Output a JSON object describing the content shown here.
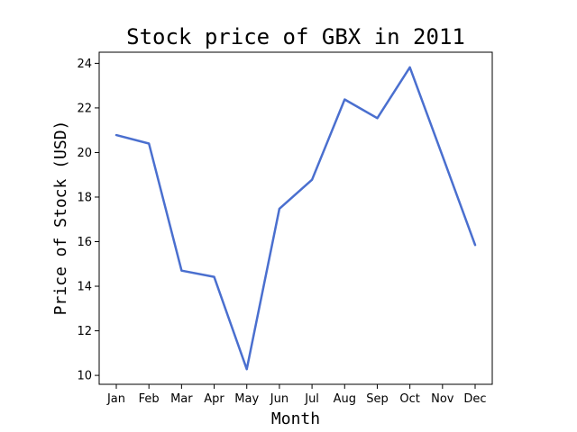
{
  "chart_data": {
    "type": "line",
    "title": "Stock price of GBX in 2011",
    "xlabel": "Month",
    "ylabel": "Price of Stock (USD)",
    "categories": [
      "Jan",
      "Feb",
      "Mar",
      "Apr",
      "May",
      "Jun",
      "Jul",
      "Aug",
      "Sep",
      "Oct",
      "Nov",
      "Dec"
    ],
    "yticks": [
      10,
      12,
      14,
      16,
      18,
      20,
      22,
      24
    ],
    "ylim": [
      9.6,
      24.5
    ],
    "grid": false,
    "legend": "none",
    "series": [
      {
        "color": "#4a6fcf",
        "values": [
          20.78,
          20.4,
          14.7,
          14.42,
          10.28,
          17.48,
          18.78,
          22.38,
          21.54,
          23.82,
          19.85,
          15.85
        ]
      }
    ]
  }
}
